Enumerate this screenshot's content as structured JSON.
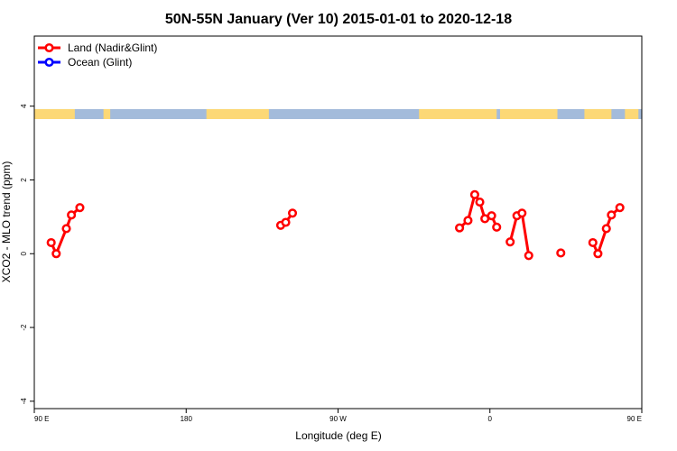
{
  "chart_data": {
    "type": "line",
    "title": "50N-55N January (Ver 10)   2015-01-01 to 2020-12-18",
    "xlabel": "Longitude (deg E)",
    "ylabel": "XCO2 - MLO trend (ppm)",
    "xlim": [
      90,
      450
    ],
    "ylim": [
      -4.2,
      5.9
    ],
    "x_ticks": [
      {
        "value": 90,
        "label": "90 E"
      },
      {
        "value": 180,
        "label": "180"
      },
      {
        "value": 270,
        "label": "90 W"
      },
      {
        "value": 360,
        "label": "0"
      },
      {
        "value": 450,
        "label": "90 E"
      },
      {
        "value": 540,
        "label": "180"
      }
    ],
    "y_ticks": [
      -4,
      -2,
      0,
      2,
      4
    ],
    "grid": false,
    "legend_position": "top-left",
    "land_ocean_band": {
      "y_range": [
        3.65,
        3.92
      ],
      "land_color": "#fcd876",
      "ocean_color": "#a3bbdb"
    },
    "series": [
      {
        "name": "Land (Nadir&Glint)",
        "color": "#ff0000",
        "segments": [
          [
            [
              100,
              0.3
            ],
            [
              103,
              0.0
            ],
            [
              109,
              0.68
            ],
            [
              112,
              1.05
            ],
            [
              117,
              1.25
            ]
          ],
          [
            [
              236,
              0.77
            ],
            [
              239,
              0.85
            ],
            [
              243,
              1.1
            ]
          ],
          [
            [
              342,
              0.7
            ],
            [
              347,
              0.9
            ],
            [
              351,
              1.6
            ],
            [
              354,
              1.4
            ],
            [
              357,
              0.95
            ],
            [
              361,
              1.03
            ],
            [
              364,
              0.72
            ]
          ],
          [
            [
              372,
              0.32
            ],
            [
              376,
              1.03
            ],
            [
              379,
              1.1
            ],
            [
              383,
              -0.05
            ]
          ],
          [
            [
              402,
              0.02
            ]
          ],
          [
            [
              421,
              0.3
            ],
            [
              424,
              0.0
            ],
            [
              429,
              0.68
            ],
            [
              432,
              1.05
            ],
            [
              437,
              1.25
            ]
          ]
        ]
      },
      {
        "name": "Ocean (Glint)",
        "color": "#0000ff",
        "segments": []
      }
    ]
  }
}
